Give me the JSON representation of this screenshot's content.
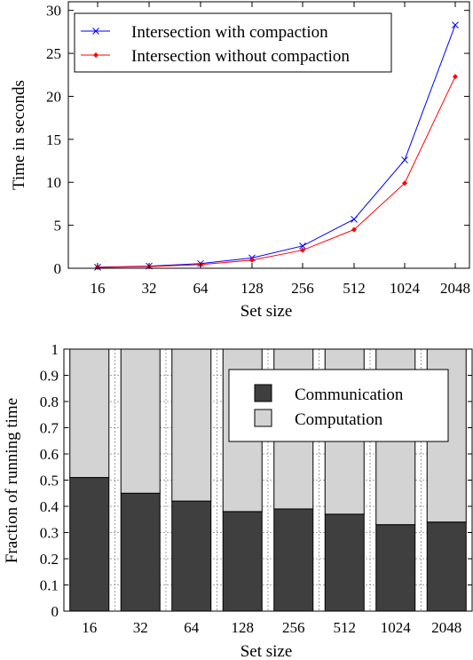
{
  "chart_data": [
    {
      "type": "line",
      "xlabel": "Set size",
      "ylabel": "Time in seconds",
      "categories": [
        "16",
        "32",
        "64",
        "128",
        "256",
        "512",
        "1024",
        "2048"
      ],
      "ylim": [
        0,
        31
      ],
      "yticks": [
        0,
        5,
        10,
        15,
        20,
        25,
        30
      ],
      "grid": false,
      "legend_position": "top-left",
      "series": [
        {
          "name": "Intersection with compaction",
          "color": "#0000ff",
          "marker": "x",
          "values": [
            0.12,
            0.25,
            0.55,
            1.2,
            2.6,
            5.7,
            12.6,
            28.3
          ]
        },
        {
          "name": "Intersection without compaction",
          "color": "#ff0000",
          "marker": "diamond",
          "values": [
            0.1,
            0.2,
            0.42,
            0.95,
            2.1,
            4.5,
            9.9,
            22.3
          ]
        }
      ]
    },
    {
      "type": "bar",
      "stacked": true,
      "xlabel": "Set size",
      "ylabel": "Fraction of running time",
      "categories": [
        "16",
        "32",
        "64",
        "128",
        "256",
        "512",
        "1024",
        "2048"
      ],
      "ylim": [
        0,
        1
      ],
      "yticks": [
        "0",
        "0.1",
        "0.2",
        "0.3",
        "0.4",
        "0.5",
        "0.6",
        "0.7",
        "0.8",
        "0.9",
        "1"
      ],
      "grid": true,
      "legend_position": "top-right",
      "series": [
        {
          "name": "Communication",
          "color": "#3f3f3f",
          "values": [
            0.51,
            0.45,
            0.42,
            0.38,
            0.39,
            0.37,
            0.33,
            0.34
          ]
        },
        {
          "name": "Computation",
          "color": "#d3d3d3",
          "values": [
            0.49,
            0.55,
            0.58,
            0.62,
            0.61,
            0.63,
            0.67,
            0.66
          ]
        }
      ]
    }
  ]
}
